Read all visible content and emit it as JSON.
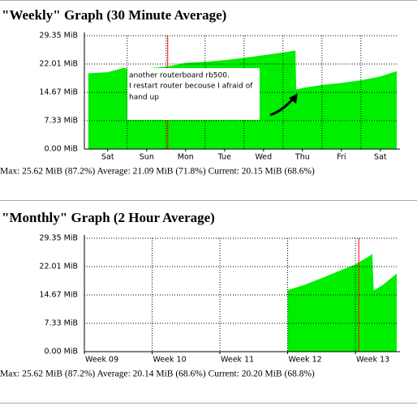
{
  "chart_data": [
    {
      "type": "area",
      "title": "\"Weekly\" Graph (30 Minute Average)",
      "x": [
        0,
        0.5,
        0.9,
        1.2,
        2.0,
        2.5,
        3.0,
        3.5,
        4.0,
        4.5,
        5.0,
        5.32,
        5.34,
        5.5,
        6.0,
        6.5,
        7.0,
        7.5,
        7.92
      ],
      "series": [
        {
          "color": "#00ee00",
          "values": [
            19.6,
            19.9,
            21.0,
            20.6,
            21.3,
            22.3,
            22.6,
            23.0,
            23.6,
            24.3,
            25.0,
            25.5,
            15.4,
            15.8,
            16.6,
            17.1,
            17.8,
            18.8,
            20.15
          ]
        }
      ],
      "xlim": [
        -0.1,
        7.92
      ],
      "xticks": [
        {
          "value": 0.5,
          "label": "Sat"
        },
        {
          "value": 1.5,
          "label": "Sun"
        },
        {
          "value": 2.5,
          "label": "Mon"
        },
        {
          "value": 3.5,
          "label": "Tue"
        },
        {
          "value": 4.5,
          "label": "Wed"
        },
        {
          "value": 5.5,
          "label": "Thu"
        },
        {
          "value": 6.5,
          "label": "Fri"
        },
        {
          "value": 7.5,
          "label": "Sat"
        }
      ],
      "xgrid": [
        1,
        2,
        3,
        4,
        5,
        6,
        7
      ],
      "marker_x": 2.04,
      "marker_color": "#ff0000",
      "ylim": [
        0,
        29.35
      ],
      "yticks": [
        {
          "value": 0,
          "label": "0.00 MiB"
        },
        {
          "value": 7.33,
          "label": "7.33 MiB"
        },
        {
          "value": 14.67,
          "label": "14.67 MiB"
        },
        {
          "value": 22.01,
          "label": "22.01 MiB"
        },
        {
          "value": 29.35,
          "label": "29.35 MiB"
        }
      ],
      "stats": "Max: 25.62 MiB (87.2%)  Average: 21.09 MiB (71.8%)  Current: 20.15 MiB (68.6%)",
      "annotations": [
        "another routerboard rb500.",
        "I restart router becouse I afraid of",
        "hand up"
      ]
    },
    {
      "type": "area",
      "title": "\"Monthly\" Graph (2 Hour Average)",
      "x": [
        3.0,
        3.25,
        3.5,
        3.75,
        4.0,
        4.1,
        4.25,
        4.27,
        4.4,
        4.61
      ],
      "series": [
        {
          "color": "#00ee00",
          "values": [
            15.9,
            17.3,
            19.0,
            20.8,
            22.6,
            23.6,
            25.2,
            15.8,
            17.2,
            20.2
          ]
        }
      ],
      "xlim": [
        0,
        4.61
      ],
      "xticks": [
        {
          "value": 0,
          "label": "Week 09"
        },
        {
          "value": 1,
          "label": "Week 10"
        },
        {
          "value": 2,
          "label": "Week 11"
        },
        {
          "value": 3,
          "label": "Week 12"
        },
        {
          "value": 4,
          "label": "Week 13"
        }
      ],
      "xgrid": [
        1,
        2,
        3,
        4
      ],
      "marker_x": 4.05,
      "marker_color": "#ff0000",
      "ylim": [
        0,
        29.35
      ],
      "yticks": [
        {
          "value": 0,
          "label": "0.00 MiB"
        },
        {
          "value": 7.33,
          "label": "7.33 MiB"
        },
        {
          "value": 14.67,
          "label": "14.67 MiB"
        },
        {
          "value": 22.01,
          "label": "22.01 MiB"
        },
        {
          "value": 29.35,
          "label": "29.35 MiB"
        }
      ],
      "stats": "Max: 25.62 MiB (87.2%)  Average: 20.14 MiB (68.6%)  Current: 20.20 MiB (68.8%)"
    }
  ]
}
